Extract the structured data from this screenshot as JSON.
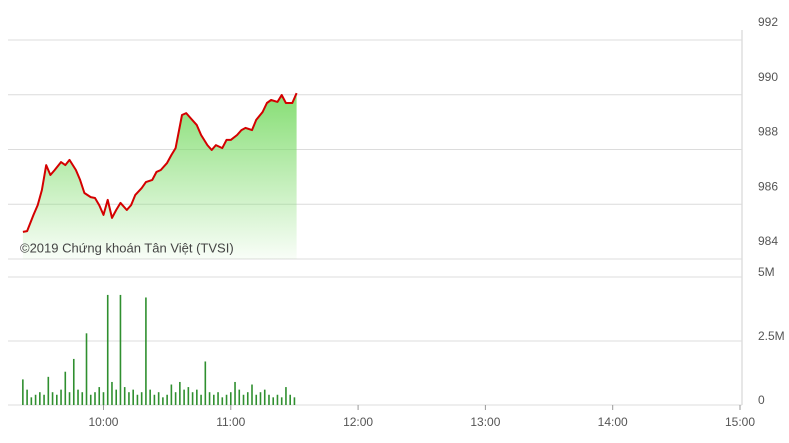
{
  "chart_data": [
    {
      "type": "area",
      "annotation": "©2019 Chứng khoán Tân Việt (TVSI)",
      "x": [
        562,
        564,
        567,
        569,
        571,
        573,
        575,
        577,
        580,
        582,
        584,
        587,
        589,
        591,
        594,
        596,
        598,
        600,
        602,
        604,
        606,
        608,
        611,
        613,
        615,
        618,
        620,
        623,
        625,
        627,
        630,
        632,
        634,
        637,
        639,
        641,
        644,
        646,
        649,
        651,
        653,
        656,
        658,
        660,
        663,
        665,
        667,
        670,
        672,
        675,
        677,
        679,
        682,
        684,
        686,
        689,
        691
      ],
      "values": [
        984.99,
        985.02,
        985.61,
        985.97,
        986.52,
        987.43,
        987.07,
        987.25,
        987.54,
        987.43,
        987.62,
        987.25,
        986.89,
        986.41,
        986.26,
        986.23,
        985.97,
        985.61,
        986.16,
        985.5,
        985.79,
        986.05,
        985.79,
        985.97,
        986.34,
        986.59,
        986.81,
        986.89,
        987.18,
        987.25,
        987.51,
        987.8,
        988.05,
        989.26,
        989.33,
        989.15,
        988.89,
        988.53,
        988.16,
        987.98,
        988.16,
        988.05,
        988.35,
        988.35,
        988.53,
        988.71,
        988.79,
        988.71,
        989.08,
        989.37,
        989.7,
        989.81,
        989.74,
        989.99,
        989.7,
        989.7,
        990.06
      ],
      "color": "#d40000",
      "fill_color": "#7fdc6c",
      "xlim": [
        555,
        900
      ],
      "ylim": [
        984,
        992
      ],
      "yticks": [
        984,
        986,
        988,
        990,
        992
      ],
      "grid": true
    },
    {
      "type": "bar",
      "x": [
        562,
        564,
        566,
        568,
        570,
        572,
        574,
        576,
        578,
        580,
        582,
        584,
        586,
        588,
        590,
        592,
        594,
        596,
        598,
        600,
        602,
        604,
        606,
        608,
        610,
        612,
        614,
        616,
        618,
        620,
        622,
        624,
        626,
        628,
        630,
        632,
        634,
        636,
        638,
        640,
        642,
        644,
        646,
        648,
        650,
        652,
        654,
        656,
        658,
        660,
        662,
        664,
        666,
        668,
        670,
        672,
        674,
        676,
        678,
        680,
        682,
        684,
        686,
        688,
        690
      ],
      "values": [
        1.0,
        0.6,
        0.3,
        0.4,
        0.5,
        0.4,
        1.1,
        0.5,
        0.4,
        0.6,
        1.3,
        0.5,
        1.8,
        0.6,
        0.5,
        2.8,
        0.4,
        0.5,
        0.7,
        0.5,
        4.3,
        0.9,
        0.6,
        4.3,
        0.7,
        0.5,
        0.6,
        0.4,
        0.5,
        4.2,
        0.6,
        0.4,
        0.5,
        0.3,
        0.4,
        0.8,
        0.5,
        0.9,
        0.6,
        0.7,
        0.5,
        0.6,
        0.4,
        1.7,
        0.5,
        0.4,
        0.5,
        0.3,
        0.4,
        0.5,
        0.9,
        0.6,
        0.4,
        0.5,
        0.8,
        0.4,
        0.5,
        0.6,
        0.4,
        0.3,
        0.4,
        0.3,
        0.7,
        0.4,
        0.3
      ],
      "color": "#2f8f2f",
      "xlim": [
        555,
        900
      ],
      "xticks": [
        {
          "value": 600,
          "label": "10:00"
        },
        {
          "value": 660,
          "label": "11:00"
        },
        {
          "value": 720,
          "label": "12:00"
        },
        {
          "value": 780,
          "label": "13:00"
        },
        {
          "value": 840,
          "label": "14:00"
        },
        {
          "value": 900,
          "label": "15:00"
        }
      ],
      "ylim": [
        0,
        5
      ],
      "yticks": [
        0,
        {
          "value": 2.5,
          "label": "2.5M"
        },
        {
          "value": 5,
          "label": "5M"
        }
      ],
      "grid": true
    }
  ]
}
